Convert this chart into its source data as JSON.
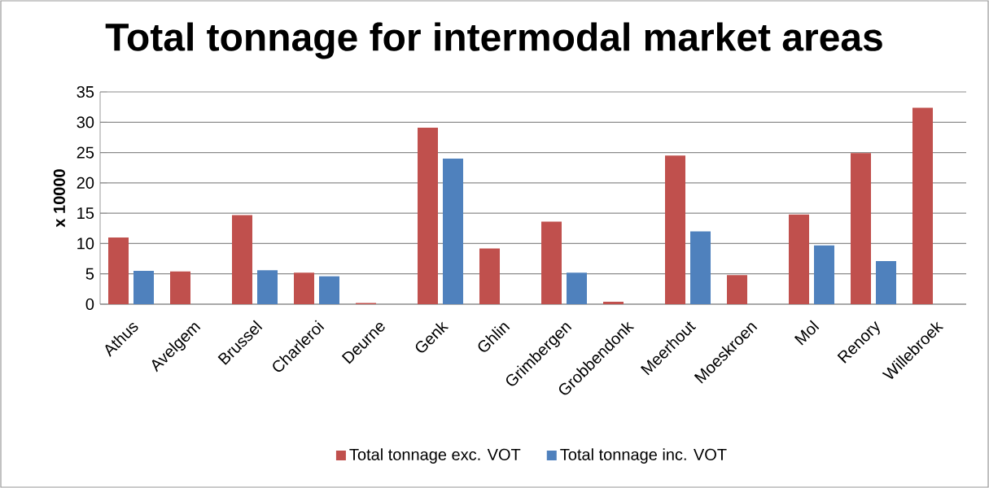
{
  "chart_data": {
    "type": "bar",
    "title": "Total tonnage for intermodal market areas",
    "ylabel": "x 10000",
    "categories": [
      "Athus",
      "Avelgem",
      "Brussel",
      "Charleroi",
      "Deurne",
      "Genk",
      "Ghlin",
      "Grimbergen",
      "Grobbendonk",
      "Meerhout",
      "Moeskroen",
      "Mol",
      "Renory",
      "Willebroek"
    ],
    "series": [
      {
        "name": "Total tonnage exc. VOT",
        "color": "#c0504d",
        "values": [
          11.0,
          5.4,
          14.7,
          5.2,
          0.2,
          29.1,
          9.2,
          13.6,
          0.4,
          24.5,
          4.8,
          14.8,
          24.9,
          32.4
        ]
      },
      {
        "name": "Total tonnage inc. VOT",
        "color": "#4f81bd",
        "values": [
          5.5,
          null,
          5.6,
          4.6,
          null,
          24.0,
          null,
          5.2,
          null,
          12.0,
          null,
          9.7,
          7.1,
          null
        ]
      }
    ],
    "ylim": [
      0,
      35
    ],
    "yticks": [
      0,
      5,
      10,
      15,
      20,
      25,
      30,
      35
    ],
    "grid": "y",
    "legend": "bottom"
  }
}
